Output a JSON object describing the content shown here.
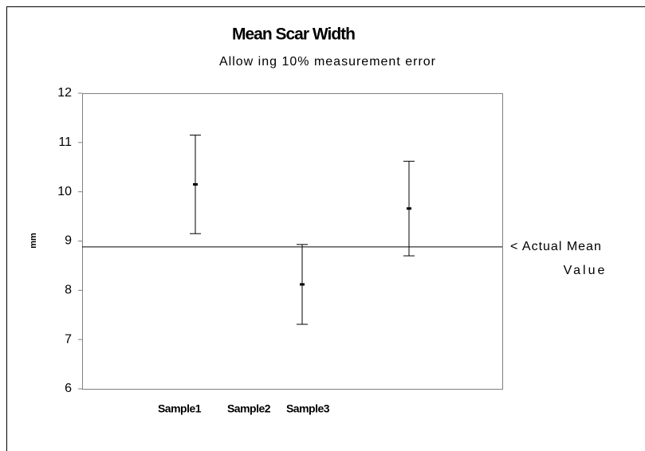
{
  "chart_data": {
    "type": "errorbar",
    "title": "Mean Scar Width",
    "subtitle": "Allow ing 10% measurement error",
    "y_label": "mm",
    "categories": [
      "Sample1",
      "Sample2",
      "Sample3"
    ],
    "values": [
      10.15,
      8.12,
      9.66
    ],
    "errors": [
      1.0,
      0.81,
      0.96
    ],
    "color": "#000000",
    "ylim": [
      6,
      12
    ],
    "yticks": [
      6,
      7,
      8,
      9,
      10,
      11,
      12
    ],
    "reference_line": {
      "value": 8.88,
      "label_lines": [
        "< Actual Mean",
        "Value"
      ]
    }
  }
}
